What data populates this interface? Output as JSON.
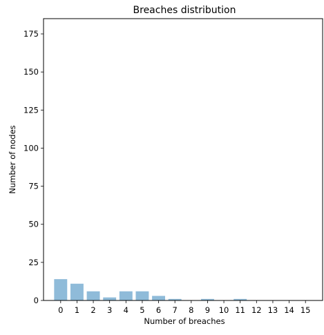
{
  "chart_data": {
    "type": "bar",
    "title": "Breaches distribution",
    "xlabel": "Number of breaches",
    "ylabel": "Number of nodes",
    "categories": [
      "0",
      "1",
      "2",
      "3",
      "4",
      "5",
      "6",
      "7",
      "8",
      "9",
      "10",
      "11",
      "12",
      "13",
      "14",
      "15"
    ],
    "values": [
      14,
      11,
      6,
      2,
      6,
      6,
      3,
      1,
      0,
      1,
      0,
      1,
      0,
      0,
      0,
      0
    ],
    "ylim": [
      0,
      185
    ],
    "yticks": [
      "0",
      "25",
      "50",
      "75",
      "100",
      "125",
      "150",
      "175"
    ],
    "grid": false,
    "legend": "none",
    "bar_color": "#1f77b4",
    "bar_opacity": 0.5
  }
}
